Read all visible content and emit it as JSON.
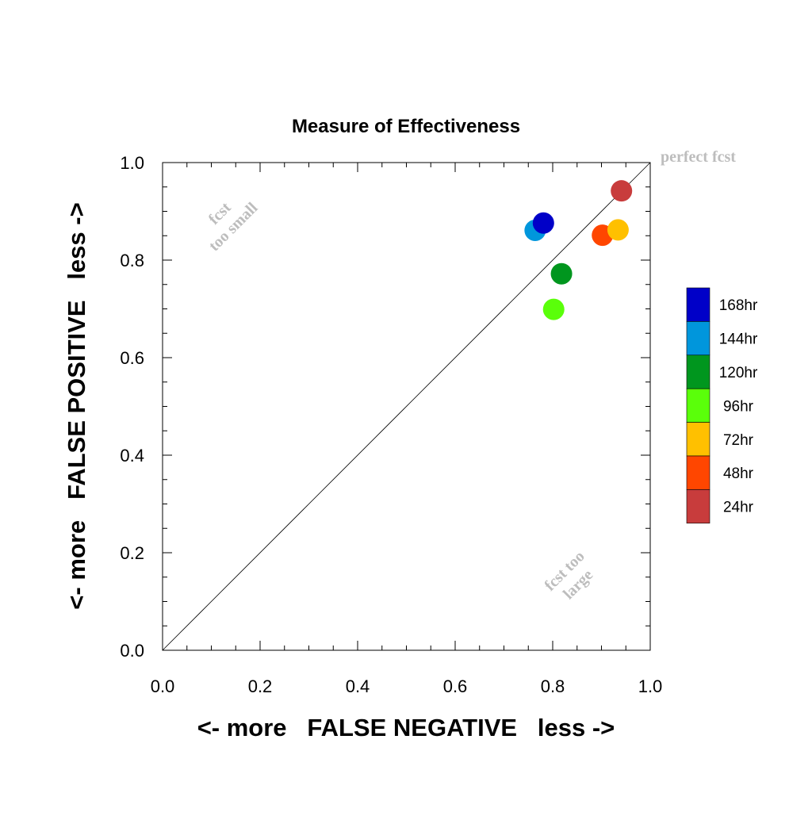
{
  "chart_data": {
    "type": "scatter",
    "title": "Measure of Effectiveness",
    "xlabel": "<- more   FALSE NEGATIVE   less ->",
    "ylabel": "<- more   FALSE POSITIVE   less ->",
    "xlim": [
      0,
      1
    ],
    "ylim": [
      0,
      1
    ],
    "xticks": [
      "0.0",
      "0.2",
      "0.4",
      "0.6",
      "0.8",
      "1.0"
    ],
    "yticks": [
      "0.0",
      "0.2",
      "0.4",
      "0.6",
      "0.8",
      "1.0"
    ],
    "grid": false,
    "diagonal_line": true,
    "annotations": {
      "perfect": "perfect fcst",
      "small_line1": "fcst",
      "small_line2": "too small",
      "large_line1": "fcst too",
      "large_line2": "large"
    },
    "legend_position": "right",
    "series": [
      {
        "name": "168hr",
        "color": "#0000c8",
        "x": 0.781,
        "y": 0.876
      },
      {
        "name": "144hr",
        "color": "#0096dc",
        "x": 0.764,
        "y": 0.861
      },
      {
        "name": "120hr",
        "color": "#00961e",
        "x": 0.818,
        "y": 0.772
      },
      {
        "name": "96hr",
        "color": "#5aff0a",
        "x": 0.802,
        "y": 0.699
      },
      {
        "name": "72hr",
        "color": "#ffc000",
        "x": 0.934,
        "y": 0.862
      },
      {
        "name": "48hr",
        "color": "#ff4600",
        "x": 0.902,
        "y": 0.851
      },
      {
        "name": "24hr",
        "color": "#c83c3c",
        "x": 0.941,
        "y": 0.942
      }
    ]
  }
}
